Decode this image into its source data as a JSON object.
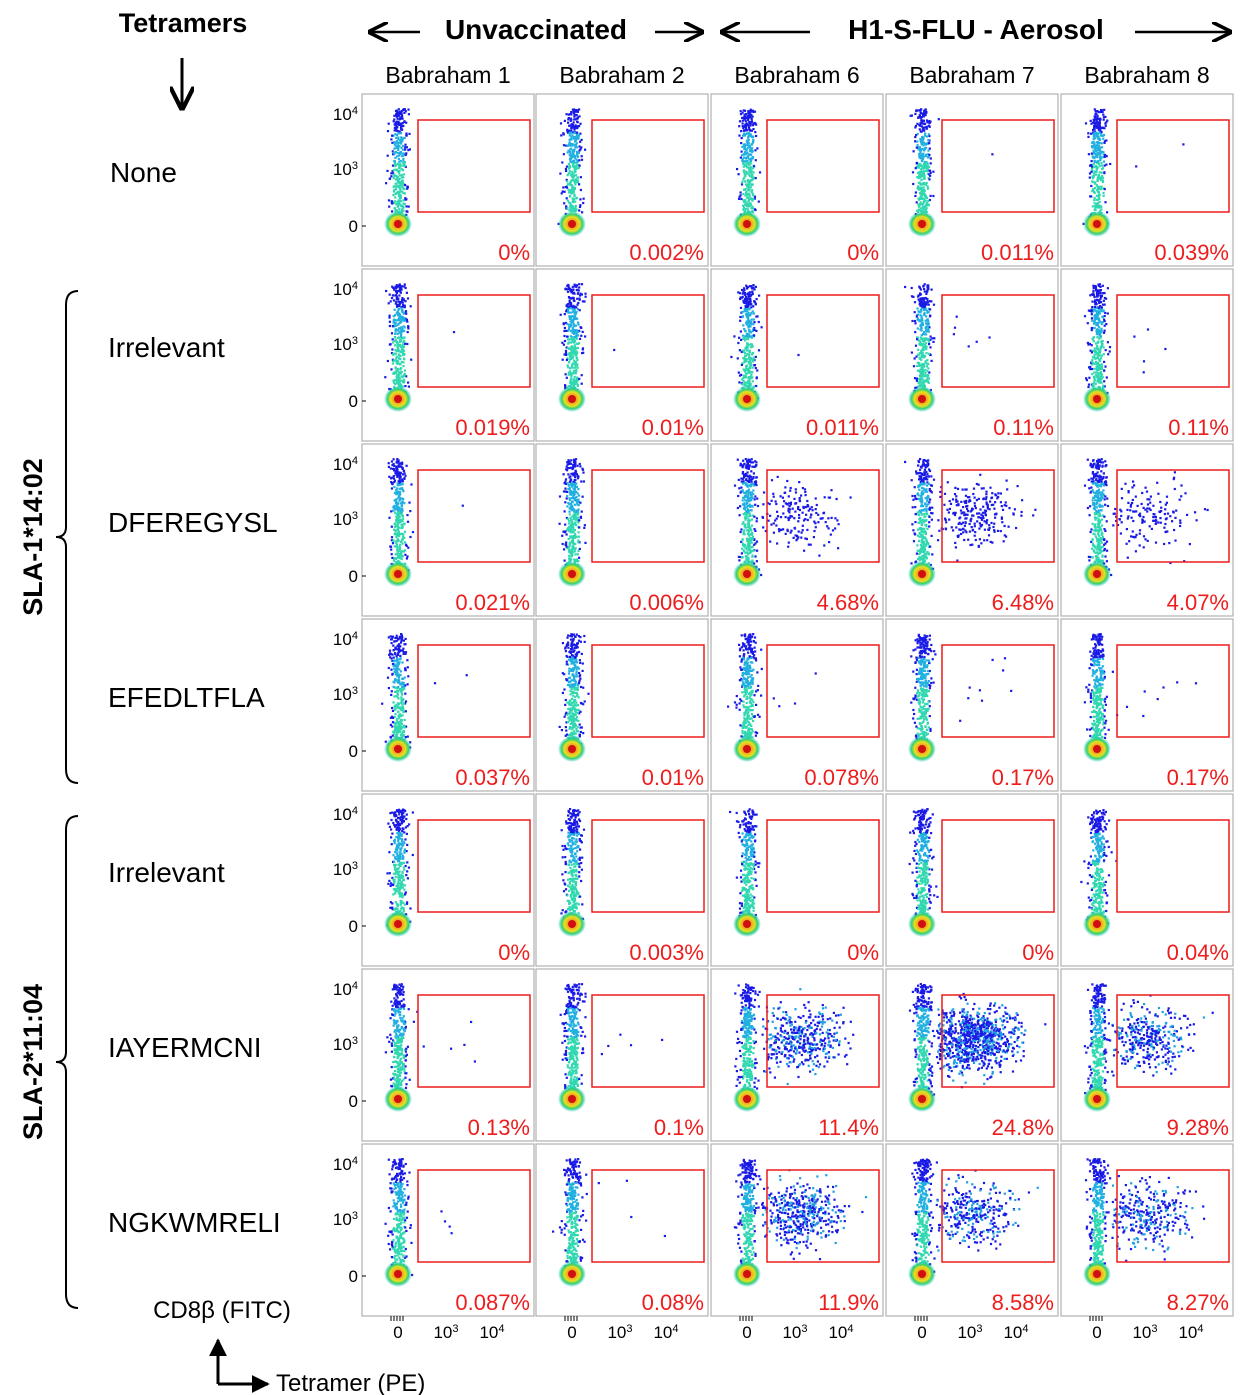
{
  "chart_data": {
    "type": "scatter",
    "title": "",
    "xlabel": "Tetramer (PE)",
    "ylabel": "CD8β (FITC)",
    "x_ticks": [
      "0",
      "10^3",
      "10^4"
    ],
    "y_ticks": [
      "0",
      "10^3",
      "10^4"
    ],
    "row_header": "Tetramers",
    "group_headers": [
      {
        "label": "Unvaccinated",
        "columns": [
          0,
          1
        ]
      },
      {
        "label": "H1-S-FLU - Aerosol",
        "columns": [
          2,
          3,
          4
        ]
      }
    ],
    "columns": [
      "Babraham 1",
      "Babraham 2",
      "Babraham 6",
      "Babraham 7",
      "Babraham 8"
    ],
    "row_groups": [
      {
        "label": "SLA-1*14:02",
        "rows": [
          1,
          2,
          3
        ]
      },
      {
        "label": "SLA-2*11:04",
        "rows": [
          4,
          5,
          6
        ]
      }
    ],
    "rows": [
      {
        "label": "None",
        "values": [
          "0%",
          "0.002%",
          "0%",
          "0.011%",
          "0.039%"
        ]
      },
      {
        "label": "Irrelevant",
        "values": [
          "0.019%",
          "0.01%",
          "0.011%",
          "0.11%",
          "0.11%"
        ]
      },
      {
        "label": "DFEREGYSL",
        "values": [
          "0.021%",
          "0.006%",
          "4.68%",
          "6.48%",
          "4.07%"
        ]
      },
      {
        "label": "EFEDLTFLA",
        "values": [
          "0.037%",
          "0.01%",
          "0.078%",
          "0.17%",
          "0.17%"
        ]
      },
      {
        "label": "Irrelevant",
        "values": [
          "0%",
          "0.003%",
          "0%",
          "0%",
          "0.04%"
        ]
      },
      {
        "label": "IAYERMCNI",
        "values": [
          "0.13%",
          "0.1%",
          "11.4%",
          "24.8%",
          "9.28%"
        ]
      },
      {
        "label": "NGKWMRELI",
        "values": [
          "0.087%",
          "0.08%",
          "11.9%",
          "8.58%",
          "8.27%"
        ]
      }
    ],
    "colors": {
      "gate": "#ee1c1c",
      "percent_text": "#ee1c1c",
      "density_low": "#1010e8",
      "density_mid": "#20d0c0",
      "density_high": "#e02010"
    }
  }
}
